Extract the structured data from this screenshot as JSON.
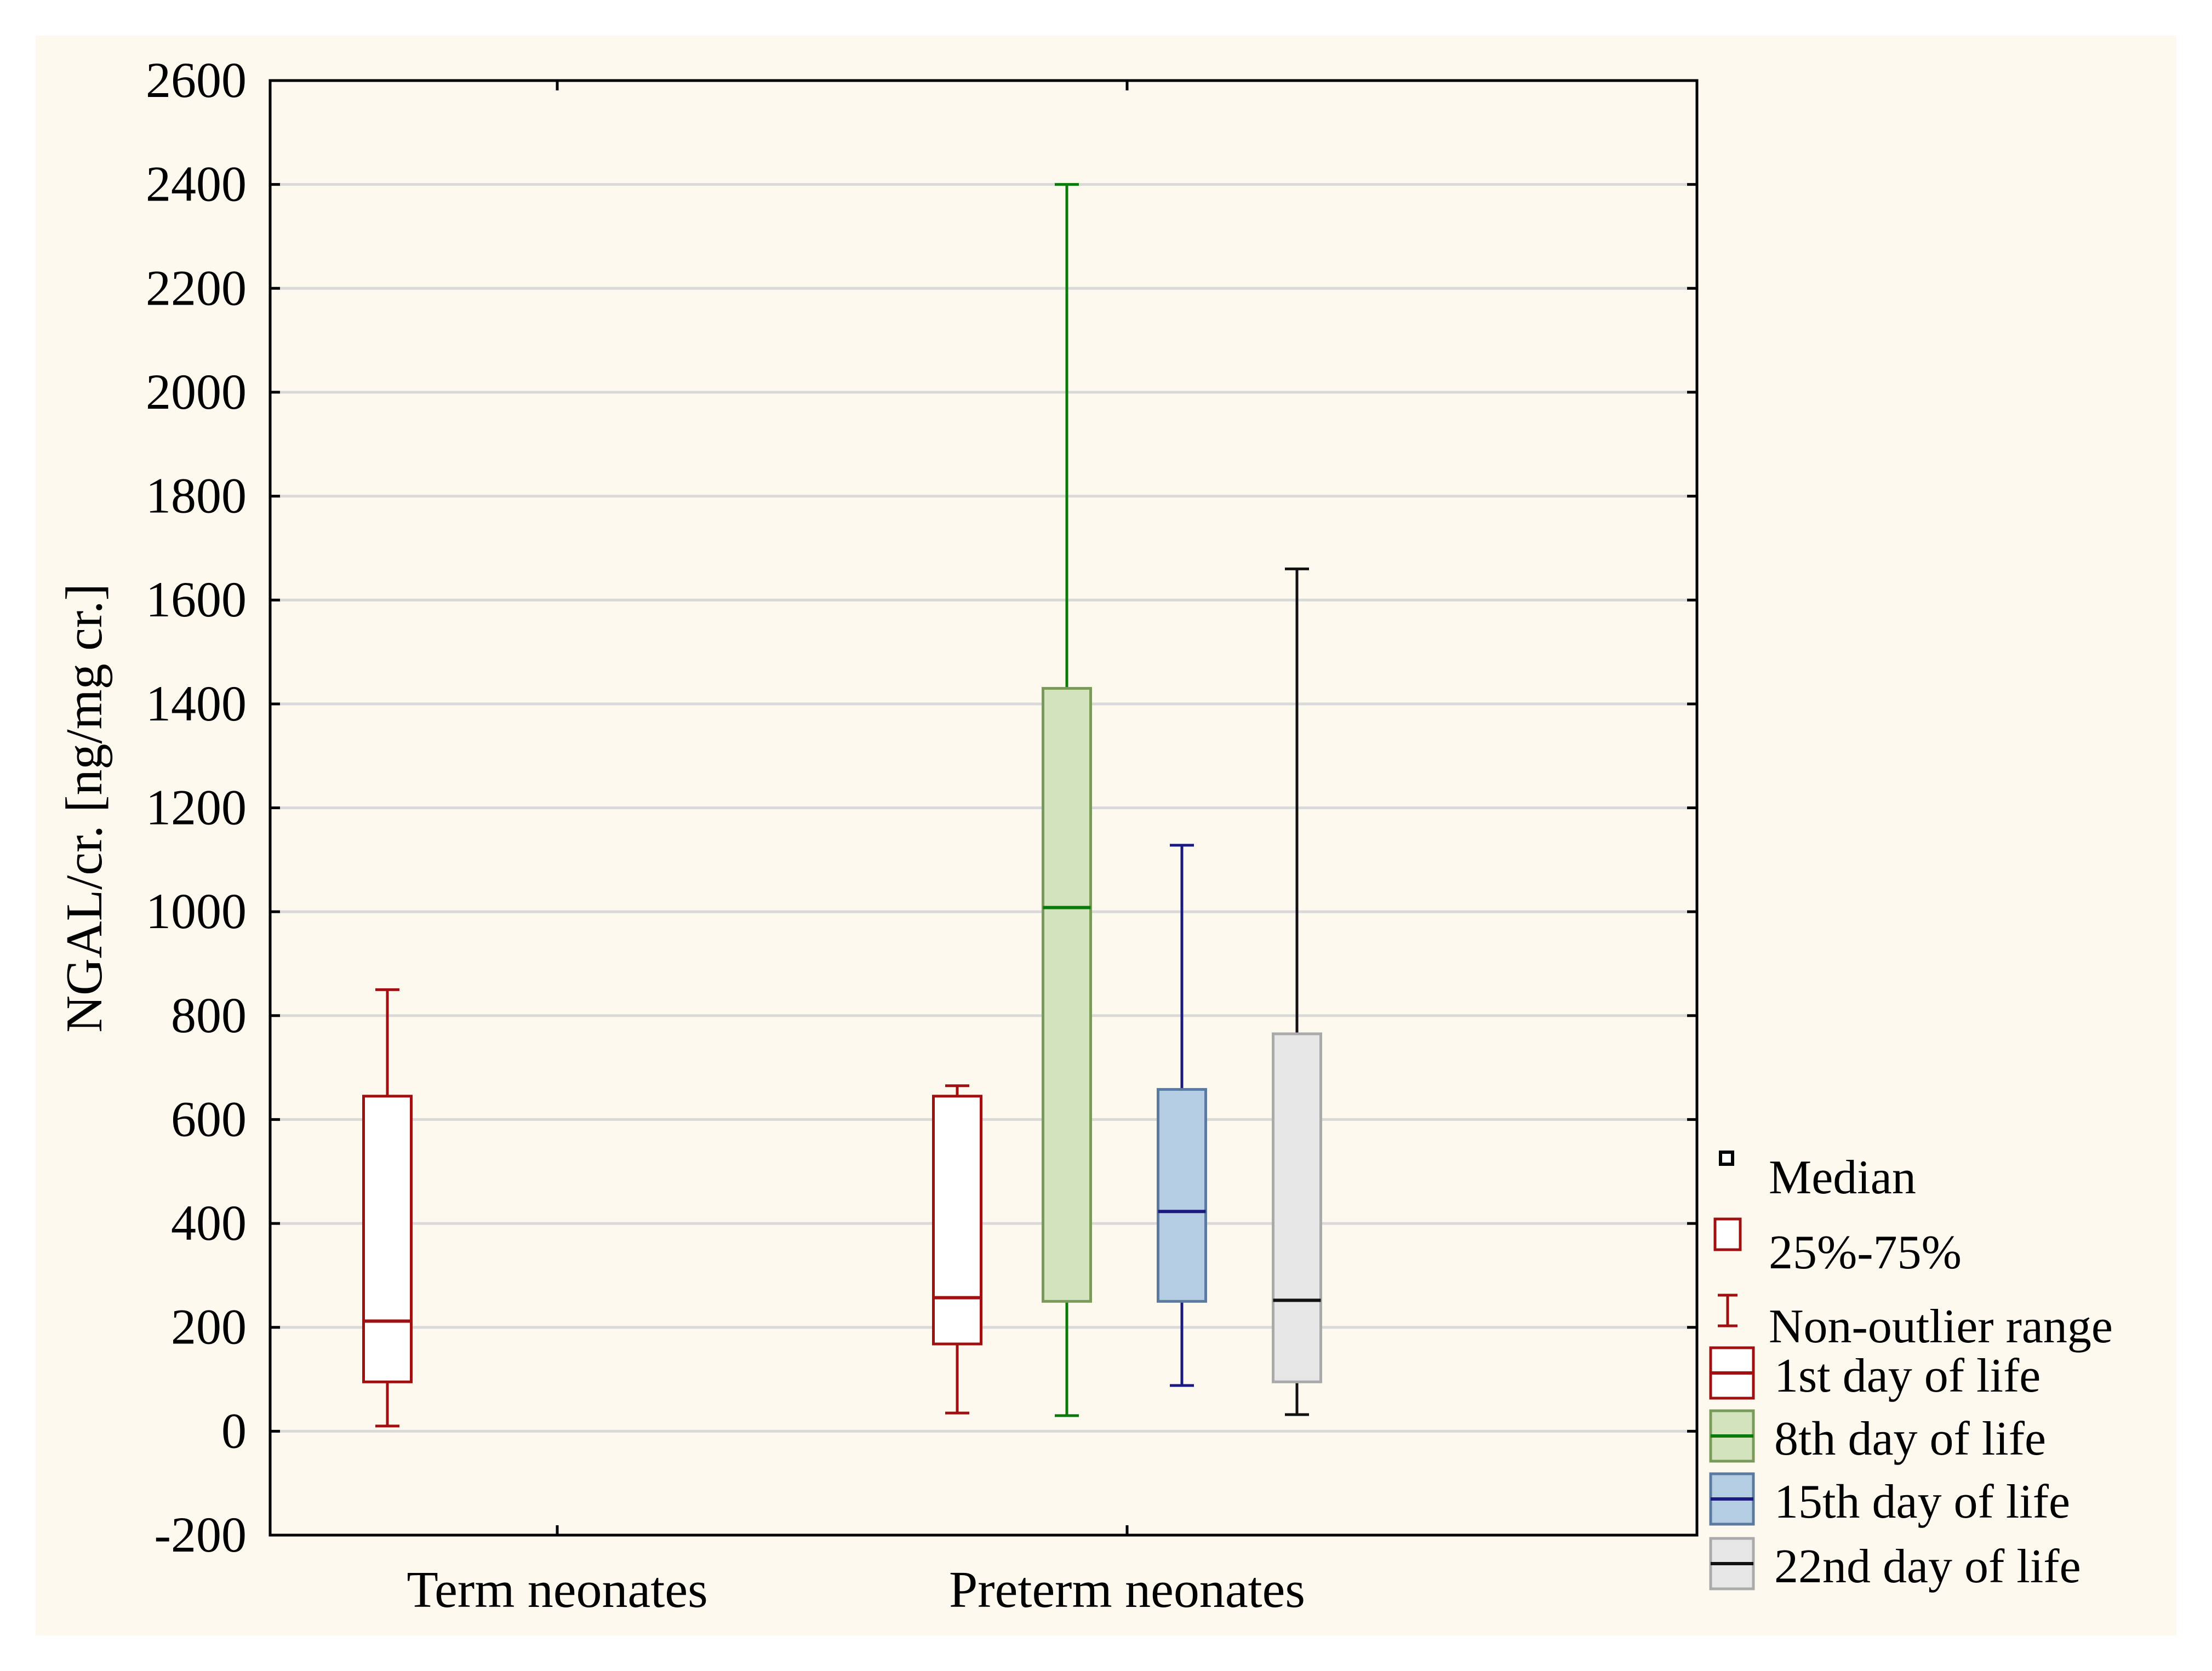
{
  "chart_data": {
    "type": "box",
    "title": "",
    "xlabel": "",
    "ylabel": "NGAL/cr. [ng/mg cr.]",
    "ylim": [
      -200,
      2600
    ],
    "yticks": [
      -200,
      0,
      200,
      400,
      600,
      800,
      1000,
      1200,
      1400,
      1600,
      1800,
      2000,
      2200,
      2400,
      2600
    ],
    "grid": true,
    "categories": [
      "Term neonates",
      "Preterm neonates"
    ],
    "series": [
      {
        "name": "1st day of life",
        "color": "#a01010",
        "fill": "#ffffff",
        "boxes": [
          {
            "category": "Term neonates",
            "min": 10,
            "q1": 95,
            "median": 212,
            "q3": 645,
            "max": 850
          },
          {
            "category": "Preterm neonates",
            "min": 35,
            "q1": 168,
            "median": 257,
            "q3": 645,
            "max": 665
          }
        ]
      },
      {
        "name": "8th day of life",
        "color": "#0a7a0a",
        "fill": "#d3e3bd",
        "boxes": [
          {
            "category": "Preterm neonates",
            "min": 30,
            "q1": 250,
            "median": 1008,
            "q3": 1430,
            "max": 2400
          }
        ]
      },
      {
        "name": "15th day of life",
        "color": "#1a1a80",
        "fill": "#b4cde3",
        "boxes": [
          {
            "category": "Preterm neonates",
            "min": 88,
            "q1": 250,
            "median": 423,
            "q3": 658,
            "max": 1128
          }
        ]
      },
      {
        "name": "22nd day of life",
        "color": "#111111",
        "fill": "#e6e6e6",
        "boxes": [
          {
            "category": "Preterm neonates",
            "min": 32,
            "q1": 95,
            "median": 252,
            "q3": 765,
            "max": 1660
          }
        ]
      }
    ],
    "legend_position": "right",
    "legend": {
      "median_label": "Median",
      "box_label": "25%-75%",
      "whisker_label": "Non-outlier range"
    }
  }
}
